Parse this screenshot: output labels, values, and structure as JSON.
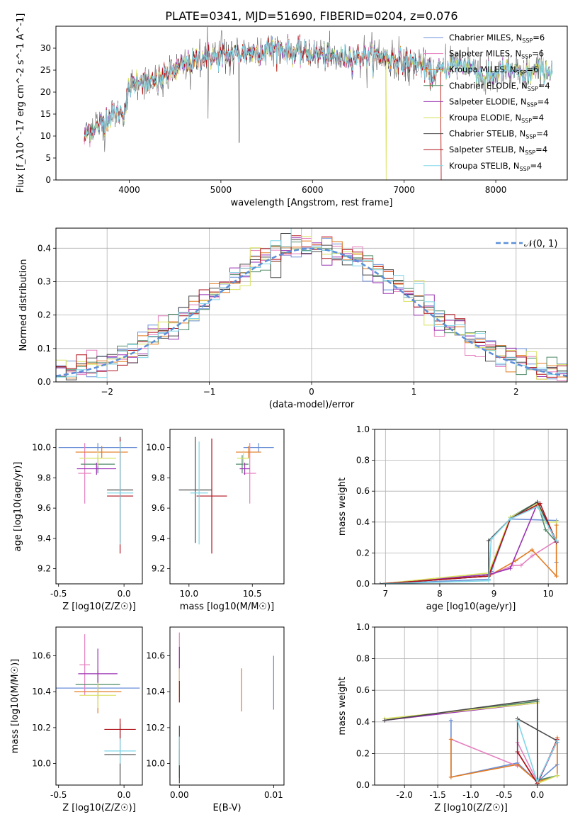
{
  "figure": {
    "title": "PLATE=0341, MJD=51690, FIBERID=0204, z=0.076"
  },
  "colors": [
    "#6a8fd8",
    "#e57fbf",
    "#e37b22",
    "#4e8a66",
    "#9a32b3",
    "#d9e160",
    "#4a4a4a",
    "#b0121b",
    "#7fd6e8"
  ],
  "chart_data": [
    {
      "id": "spectrum",
      "type": "line",
      "xlabel": "wavelength [Angstrom, rest frame]",
      "ylabel": "Flux [f_λ10^-17 erg cm^-2 s^-1 A^-1]",
      "xlim": [
        3200,
        8780
      ],
      "ylim": [
        0,
        35
      ],
      "xticks": [
        4000,
        5000,
        6000,
        7000,
        8000
      ],
      "yticks": [
        0,
        5,
        10,
        15,
        20,
        25,
        30
      ],
      "grid": false,
      "legend_position": "right",
      "series": [
        {
          "name": "Chabrier MILES, N_SSP=6"
        },
        {
          "name": "Salpeter MILES, N_SSP=6"
        },
        {
          "name": "Kroupa MILES, N_SSP=6"
        },
        {
          "name": "Chabrier ELODIE, N_SSP=4"
        },
        {
          "name": "Salpeter ELODIE, N_SSP=4"
        },
        {
          "name": "Kroupa ELODIE, N_SSP=4"
        },
        {
          "name": "Chabrier STELIB, N_SSP=4"
        },
        {
          "name": "Salpeter STELIB, N_SSP=4"
        },
        {
          "name": "Kroupa STELIB, N_SSP=4"
        }
      ],
      "approx_continuum": {
        "x": [
          3500,
          3550,
          3650,
          3750,
          3850,
          3950,
          4000,
          4100,
          4200,
          4300,
          4400,
          4500,
          4600,
          4700,
          4800,
          4900,
          5000,
          5200,
          5400,
          5600,
          5800,
          6000,
          6200,
          6400,
          6600,
          6800,
          7000,
          7200,
          7300,
          7400,
          7500,
          7700,
          7900,
          8100,
          8300,
          8500,
          8620
        ],
        "y": [
          9,
          11,
          12,
          14,
          15,
          16,
          21,
          23,
          22,
          22,
          24,
          25,
          26,
          27,
          28,
          28,
          28,
          29,
          29,
          30,
          29,
          29,
          28,
          28,
          28,
          28,
          27,
          26,
          24,
          25,
          26,
          26,
          23,
          25,
          24,
          25,
          25
        ]
      }
    },
    {
      "id": "residuals",
      "type": "line",
      "xlabel": "(data-model)/error",
      "ylabel": "Normed distribution",
      "xlim": [
        -2.5,
        2.5
      ],
      "ylim": [
        0,
        0.46
      ],
      "xticks": [
        -2,
        -1,
        0,
        1,
        2
      ],
      "yticks": [
        0.0,
        0.1,
        0.2,
        0.3,
        0.4
      ],
      "grid": true,
      "legend": "𝒩(0, 1)",
      "gaussian": {
        "mean": 0,
        "sigma": 1
      }
    },
    {
      "id": "age-vs-Z",
      "type": "scatter",
      "xlabel": "Z [log10(Z/Z☉)]",
      "ylabel": "age  [log10(age/yr)]",
      "xlim": [
        -0.52,
        0.14
      ],
      "ylim": [
        9.1,
        10.12
      ],
      "xticks": [
        -0.5,
        0.0
      ],
      "yticks": [
        9.2,
        9.4,
        9.6,
        9.8,
        10.0
      ],
      "points": [
        {
          "x": -0.2,
          "y": 10.0,
          "xerr": 0.3,
          "yerr": 0.03
        },
        {
          "x": -0.3,
          "y": 9.83,
          "xerr": 0.05,
          "yerr": 0.2
        },
        {
          "x": -0.17,
          "y": 9.97,
          "xerr": 0.2,
          "yerr": 0.04
        },
        {
          "x": -0.2,
          "y": 9.89,
          "xerr": 0.13,
          "yerr": 0.06
        },
        {
          "x": -0.21,
          "y": 9.86,
          "xerr": 0.15,
          "yerr": 0.04
        },
        {
          "x": -0.2,
          "y": 9.93,
          "xerr": 0.14,
          "yerr": 0.05
        },
        {
          "x": -0.03,
          "y": 9.72,
          "xerr": 0.1,
          "yerr": 0.35
        },
        {
          "x": -0.03,
          "y": 9.68,
          "xerr": 0.1,
          "yerr": 0.38
        },
        {
          "x": -0.03,
          "y": 9.7,
          "xerr": 0.1,
          "yerr": 0.34
        }
      ]
    },
    {
      "id": "age-vs-mass",
      "type": "scatter",
      "xlabel": "mass [log10(M/M☉)]",
      "ylabel": "",
      "xlim": [
        9.85,
        10.75
      ],
      "ylim": [
        9.1,
        10.12
      ],
      "xticks": [
        10.0,
        10.5
      ],
      "yticks": [
        9.2,
        9.4,
        9.6,
        9.8,
        10.0
      ],
      "points": [
        {
          "x": 10.55,
          "y": 10.0,
          "xerr": 0.12,
          "yerr": 0.03
        },
        {
          "x": 10.48,
          "y": 9.83,
          "xerr": 0.05,
          "yerr": 0.2
        },
        {
          "x": 10.47,
          "y": 9.97,
          "xerr": 0.1,
          "yerr": 0.04
        },
        {
          "x": 10.42,
          "y": 9.89,
          "xerr": 0.05,
          "yerr": 0.06
        },
        {
          "x": 10.44,
          "y": 9.86,
          "xerr": 0.04,
          "yerr": 0.04
        },
        {
          "x": 10.43,
          "y": 9.93,
          "xerr": 0.05,
          "yerr": 0.05
        },
        {
          "x": 10.05,
          "y": 9.72,
          "xerr": 0.13,
          "yerr": 0.35
        },
        {
          "x": 10.18,
          "y": 9.68,
          "xerr": 0.12,
          "yerr": 0.38
        },
        {
          "x": 10.08,
          "y": 9.7,
          "xerr": 0.07,
          "yerr": 0.34
        }
      ]
    },
    {
      "id": "weight-vs-age",
      "type": "line",
      "xlabel": "age  [log10(age/yr)]",
      "ylabel": "mass weight",
      "xlim": [
        6.8,
        10.35
      ],
      "ylim": [
        0,
        1.0
      ],
      "xticks": [
        7,
        8,
        9,
        10
      ],
      "yticks": [
        0.0,
        0.2,
        0.4,
        0.6,
        0.8,
        1.0
      ],
      "grid": true,
      "series": [
        {
          "x": [
            6.9,
            8.9,
            8.95,
            9.3,
            10.15,
            10.15
          ],
          "y": [
            0.0,
            0.03,
            0.08,
            0.42,
            0.41,
            0.14
          ]
        },
        {
          "x": [
            6.9,
            8.9,
            9.35,
            9.5,
            9.7,
            10.15
          ],
          "y": [
            0.0,
            0.05,
            0.12,
            0.12,
            0.18,
            0.28
          ]
        },
        {
          "x": [
            6.9,
            8.9,
            9.4,
            9.7,
            10.15,
            10.15
          ],
          "y": [
            0.0,
            0.05,
            0.15,
            0.22,
            0.05,
            0.38
          ]
        },
        {
          "x": [
            6.9,
            8.9,
            9.3,
            9.8,
            9.95,
            10.15
          ],
          "y": [
            0.0,
            0.06,
            0.43,
            0.53,
            0.35,
            0.27
          ]
        },
        {
          "x": [
            6.9,
            8.9,
            9.3,
            9.8,
            10.15
          ],
          "y": [
            0.0,
            0.06,
            0.1,
            0.52,
            0.27
          ]
        },
        {
          "x": [
            6.9,
            8.9,
            9.3,
            9.8,
            9.95,
            10.15
          ],
          "y": [
            0.0,
            0.07,
            0.43,
            0.52,
            0.4,
            0.4
          ]
        },
        {
          "x": [
            6.9,
            8.9,
            8.9,
            9.3,
            9.8,
            10.15
          ],
          "y": [
            0.0,
            0.05,
            0.28,
            0.42,
            0.53,
            0.28
          ]
        },
        {
          "x": [
            6.9,
            8.9,
            9.3,
            9.85,
            10.15
          ],
          "y": [
            0.0,
            0.05,
            0.42,
            0.52,
            0.27
          ]
        },
        {
          "x": [
            6.9,
            8.9,
            8.95,
            9.3,
            9.8,
            10.15
          ],
          "y": [
            0.0,
            0.02,
            0.29,
            0.42,
            0.5,
            0.28
          ]
        }
      ]
    },
    {
      "id": "mass-vs-Z",
      "type": "scatter",
      "xlabel": "Z [log10(Z/Z☉)]",
      "ylabel": "mass [log10(M/M☉)]",
      "xlim": [
        -0.52,
        0.14
      ],
      "ylim": [
        9.88,
        10.76
      ],
      "xticks": [
        -0.5,
        0.0
      ],
      "yticks": [
        10.0,
        10.2,
        10.4,
        10.6
      ],
      "points": [
        {
          "x": -0.2,
          "y": 10.42,
          "xerr": 0.32,
          "yerr": 0.04
        },
        {
          "x": -0.3,
          "y": 10.55,
          "xerr": 0.04,
          "yerr": 0.17
        },
        {
          "x": -0.2,
          "y": 10.4,
          "xerr": 0.18,
          "yerr": 0.12
        },
        {
          "x": -0.2,
          "y": 10.44,
          "xerr": 0.17,
          "yerr": 0.04
        },
        {
          "x": -0.2,
          "y": 10.5,
          "xerr": 0.15,
          "yerr": 0.14
        },
        {
          "x": -0.2,
          "y": 10.38,
          "xerr": 0.14,
          "yerr": 0.07
        },
        {
          "x": -0.03,
          "y": 10.05,
          "xerr": 0.12,
          "yerr": 0.17
        },
        {
          "x": -0.03,
          "y": 10.19,
          "xerr": 0.12,
          "yerr": 0.06
        },
        {
          "x": -0.03,
          "y": 10.07,
          "xerr": 0.12,
          "yerr": 0.07
        }
      ]
    },
    {
      "id": "mass-vs-EBV",
      "type": "scatter",
      "xlabel": "E(B-V)",
      "ylabel": "",
      "xlim": [
        -0.001,
        0.0111
      ],
      "ylim": [
        9.88,
        10.76
      ],
      "xticks": [
        0.0,
        0.01
      ],
      "xticklabels": [
        "0.00",
        "0.01"
      ],
      "yticks": [
        10.0,
        10.2,
        10.4,
        10.6
      ],
      "points": [
        {
          "x": 0.01,
          "y": 10.45,
          "yerr": 0.15
        },
        {
          "x": 0.0,
          "y": 10.62,
          "yerr": 0.11
        },
        {
          "x": 0.0066,
          "y": 10.41,
          "yerr": 0.12
        },
        {
          "x": 0.0,
          "y": 10.0,
          "yerr": 0.08
        },
        {
          "x": 0.0,
          "y": 10.55,
          "yerr": 0.1
        },
        {
          "x": 0.0,
          "y": 10.45,
          "yerr": 0.08
        },
        {
          "x": 0.0,
          "y": 10.05,
          "yerr": 0.16
        },
        {
          "x": 0.0,
          "y": 10.4,
          "yerr": 0.06
        },
        {
          "x": 0.0,
          "y": 10.07,
          "yerr": 0.08
        }
      ]
    },
    {
      "id": "weight-vs-Z",
      "type": "line",
      "xlabel": "Z [log10(Z/Z☉)]",
      "ylabel": "mass weight",
      "xlim": [
        -2.45,
        0.45
      ],
      "ylim": [
        0,
        1.0
      ],
      "xticks": [
        -2.0,
        -1.5,
        -1.0,
        -0.5,
        0.0
      ],
      "yticks": [
        0.0,
        0.2,
        0.4,
        0.6,
        0.8,
        1.0
      ],
      "grid": true,
      "series": [
        {
          "x": [
            -1.3,
            -1.3,
            -0.3,
            0.0,
            0.3,
            0.3
          ],
          "y": [
            0.41,
            0.05,
            0.14,
            0.02,
            0.13,
            0.27
          ]
        },
        {
          "x": [
            -1.3,
            -0.3,
            -0.3,
            0.0,
            0.3
          ],
          "y": [
            0.29,
            0.12,
            0.27,
            0.02,
            0.28
          ]
        },
        {
          "x": [
            -1.3,
            -1.3,
            -0.3,
            0.0,
            0.3,
            0.3
          ],
          "y": [
            0.29,
            0.05,
            0.13,
            0.02,
            0.06,
            0.3
          ]
        },
        {
          "x": [
            -2.3,
            0.0,
            0.0,
            0.3
          ],
          "y": [
            0.41,
            0.53,
            0.03,
            0.06
          ]
        },
        {
          "x": [
            -2.3,
            0.0,
            0.0,
            0.3
          ],
          "y": [
            0.41,
            0.52,
            0.01,
            0.28
          ]
        },
        {
          "x": [
            -2.3,
            0.0,
            0.0,
            0.3
          ],
          "y": [
            0.42,
            0.52,
            0.01,
            0.06
          ]
        },
        {
          "x": [
            -2.3,
            0.0,
            0.0,
            -0.3,
            -0.3,
            0.3
          ],
          "y": [
            0.41,
            0.54,
            0.01,
            0.21,
            0.42,
            0.28
          ]
        },
        {
          "x": [
            -0.3,
            0.0,
            0.3
          ],
          "y": [
            0.21,
            0.01,
            0.29
          ]
        },
        {
          "x": [
            -0.3,
            0.0,
            0.3
          ],
          "y": [
            0.41,
            0.02,
            0.28
          ]
        }
      ]
    }
  ]
}
